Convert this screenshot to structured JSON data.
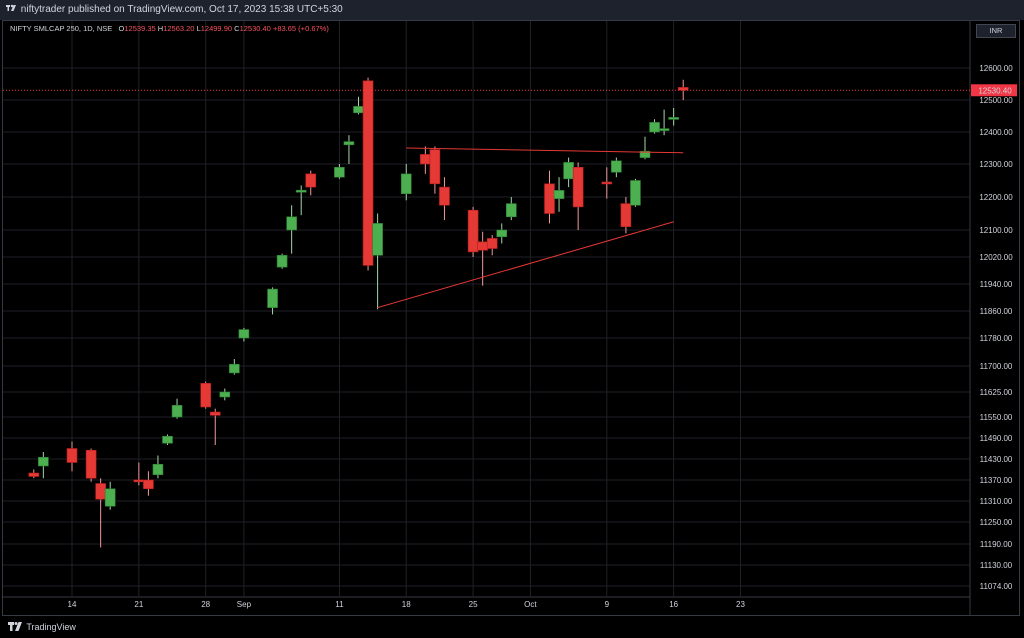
{
  "header": {
    "published_text": "niftytrader published on TradingView.com, Oct 17, 2023 15:38 UTC+5:30"
  },
  "legend": {
    "symbol": "NIFTY SMLCAP 250, 1D, NSE",
    "open_label": "O",
    "open_value": "12539.35",
    "high_label": "H",
    "high_value": "12563.20",
    "low_label": "L",
    "low_value": "12499.90",
    "close_label": "C",
    "close_value": "12530.40",
    "change": "+83.65 (+0.67%)"
  },
  "currency_button": "INR",
  "footer": {
    "brand": "TradingView"
  },
  "colors": {
    "up": "#4caf50",
    "down": "#e53935",
    "grid": "#1f2128",
    "trendline": "#e53935",
    "price_label_bg": "#f23645"
  },
  "chart_data": {
    "type": "candlestick",
    "symbol": "NIFTY SMLCAP 250",
    "interval": "1D",
    "exchange": "NSE",
    "y_ticks": [
      12600,
      12500,
      12400,
      12300,
      12200,
      12100,
      12020,
      11940,
      11860,
      11780,
      11700,
      11625,
      11550,
      11490,
      11430,
      11370,
      11310,
      11250,
      11190,
      11130,
      11074
    ],
    "y_tick_labels": [
      "12600.00",
      "12500.00",
      "12400.00",
      "12300.00",
      "12200.00",
      "12100.00",
      "12020.00",
      "11940.00",
      "11860.00",
      "11780.00",
      "11700.00",
      "11625.00",
      "11550.00",
      "11490.00",
      "11430.00",
      "11370.00",
      "11310.00",
      "11250.00",
      "11190.00",
      "11130.00",
      "11074.00"
    ],
    "last_price": 12530.4,
    "last_price_label": "12530.40",
    "x_labels": [
      "14",
      "21",
      "28",
      "Sep",
      "11",
      "18",
      "25",
      "Oct",
      "9",
      "16",
      "23"
    ],
    "x_label_dates": [
      "2023-08-14",
      "2023-08-21",
      "2023-08-28",
      "2023-09-01",
      "2023-09-11",
      "2023-09-18",
      "2023-09-25",
      "2023-10-01",
      "2023-10-09",
      "2023-10-16",
      "2023-10-23"
    ],
    "candles": [
      {
        "date": "2023-08-10",
        "o": 11390,
        "h": 11400,
        "l": 11375,
        "c": 11380
      },
      {
        "date": "2023-08-11",
        "o": 11410,
        "h": 11450,
        "l": 11375,
        "c": 11435
      },
      {
        "date": "2023-08-14",
        "o": 11460,
        "h": 11480,
        "l": 11395,
        "c": 11420
      },
      {
        "date": "2023-08-16",
        "o": 11455,
        "h": 11460,
        "l": 11365,
        "c": 11375
      },
      {
        "date": "2023-08-17",
        "o": 11360,
        "h": 11375,
        "l": 11180,
        "c": 11315
      },
      {
        "date": "2023-08-18",
        "o": 11295,
        "h": 11365,
        "l": 11285,
        "c": 11345
      },
      {
        "date": "2023-08-21",
        "o": 11370,
        "h": 11420,
        "l": 11355,
        "c": 11365
      },
      {
        "date": "2023-08-22",
        "o": 11370,
        "h": 11395,
        "l": 11325,
        "c": 11345
      },
      {
        "date": "2023-08-23",
        "o": 11385,
        "h": 11440,
        "l": 11375,
        "c": 11415
      },
      {
        "date": "2023-08-24",
        "o": 11475,
        "h": 11500,
        "l": 11470,
        "c": 11495
      },
      {
        "date": "2023-08-25",
        "o": 11550,
        "h": 11605,
        "l": 11545,
        "c": 11585
      },
      {
        "date": "2023-08-28",
        "o": 11650,
        "h": 11655,
        "l": 11575,
        "c": 11580
      },
      {
        "date": "2023-08-29",
        "o": 11565,
        "h": 11575,
        "l": 11470,
        "c": 11555
      },
      {
        "date": "2023-08-30",
        "o": 11610,
        "h": 11635,
        "l": 11600,
        "c": 11625
      },
      {
        "date": "2023-08-31",
        "o": 11680,
        "h": 11720,
        "l": 11675,
        "c": 11705
      },
      {
        "date": "2023-09-01",
        "o": 11780,
        "h": 11810,
        "l": 11770,
        "c": 11805
      },
      {
        "date": "2023-09-04",
        "o": 11870,
        "h": 11930,
        "l": 11850,
        "c": 11925
      },
      {
        "date": "2023-09-05",
        "o": 11990,
        "h": 12030,
        "l": 11985,
        "c": 12025
      },
      {
        "date": "2023-09-06",
        "o": 12100,
        "h": 12175,
        "l": 12030,
        "c": 12140
      },
      {
        "date": "2023-09-07",
        "o": 12215,
        "h": 12235,
        "l": 12145,
        "c": 12220
      },
      {
        "date": "2023-09-08",
        "o": 12270,
        "h": 12280,
        "l": 12205,
        "c": 12230
      },
      {
        "date": "2023-09-11",
        "o": 12260,
        "h": 12300,
        "l": 12255,
        "c": 12290
      },
      {
        "date": "2023-09-12",
        "o": 12360,
        "h": 12390,
        "l": 12300,
        "c": 12370
      },
      {
        "date": "2023-09-13",
        "o": 12460,
        "h": 12510,
        "l": 12455,
        "c": 12480
      },
      {
        "date": "2023-09-14",
        "o": 12560,
        "h": 12570,
        "l": 11980,
        "c": 11995
      },
      {
        "date": "2023-09-15",
        "o": 12025,
        "h": 12150,
        "l": 11865,
        "c": 12120
      },
      {
        "date": "2023-09-18",
        "o": 12210,
        "h": 12300,
        "l": 12190,
        "c": 12270
      },
      {
        "date": "2023-09-20",
        "o": 12330,
        "h": 12355,
        "l": 12270,
        "c": 12300
      },
      {
        "date": "2023-09-21",
        "o": 12345,
        "h": 12355,
        "l": 12210,
        "c": 12240
      },
      {
        "date": "2023-09-22",
        "o": 12230,
        "h": 12260,
        "l": 12130,
        "c": 12175
      },
      {
        "date": "2023-09-25",
        "o": 12160,
        "h": 12170,
        "l": 12020,
        "c": 12035
      },
      {
        "date": "2023-09-26",
        "o": 12065,
        "h": 12095,
        "l": 11935,
        "c": 12040
      },
      {
        "date": "2023-09-27",
        "o": 12075,
        "h": 12085,
        "l": 12025,
        "c": 12045
      },
      {
        "date": "2023-09-28",
        "o": 12080,
        "h": 12120,
        "l": 12060,
        "c": 12100
      },
      {
        "date": "2023-09-29",
        "o": 12140,
        "h": 12200,
        "l": 12130,
        "c": 12180
      },
      {
        "date": "2023-10-03",
        "o": 12240,
        "h": 12280,
        "l": 12120,
        "c": 12150
      },
      {
        "date": "2023-10-04",
        "o": 12195,
        "h": 12260,
        "l": 12155,
        "c": 12220
      },
      {
        "date": "2023-10-05",
        "o": 12255,
        "h": 12320,
        "l": 12230,
        "c": 12305
      },
      {
        "date": "2023-10-06",
        "o": 12290,
        "h": 12305,
        "l": 12100,
        "c": 12170
      },
      {
        "date": "2023-10-09",
        "o": 12245,
        "h": 12290,
        "l": 12195,
        "c": 12240
      },
      {
        "date": "2023-10-10",
        "o": 12275,
        "h": 12320,
        "l": 12260,
        "c": 12310
      },
      {
        "date": "2023-10-11",
        "o": 12180,
        "h": 12200,
        "l": 12090,
        "c": 12110
      },
      {
        "date": "2023-10-12",
        "o": 12175,
        "h": 12255,
        "l": 12170,
        "c": 12250
      },
      {
        "date": "2023-10-13",
        "o": 12320,
        "h": 12385,
        "l": 12315,
        "c": 12340
      },
      {
        "date": "2023-10-14",
        "o": 12400,
        "h": 12440,
        "l": 12395,
        "c": 12430
      },
      {
        "date": "2023-10-15",
        "o": 12405,
        "h": 12470,
        "l": 12390,
        "c": 12410
      },
      {
        "date": "2023-10-16",
        "o": 12440,
        "h": 12475,
        "l": 12420,
        "c": 12445
      },
      {
        "date": "2023-10-17",
        "o": 12539.35,
        "h": 12563.2,
        "l": 12499.9,
        "c": 12530.4
      }
    ],
    "trendlines": [
      {
        "from": {
          "date": "2023-09-15",
          "price": 11870
        },
        "to": {
          "date": "2023-10-16",
          "price": 12125
        }
      },
      {
        "from": {
          "date": "2023-09-18",
          "price": 12350
        },
        "to": {
          "date": "2023-10-17",
          "price": 12335
        }
      }
    ]
  }
}
